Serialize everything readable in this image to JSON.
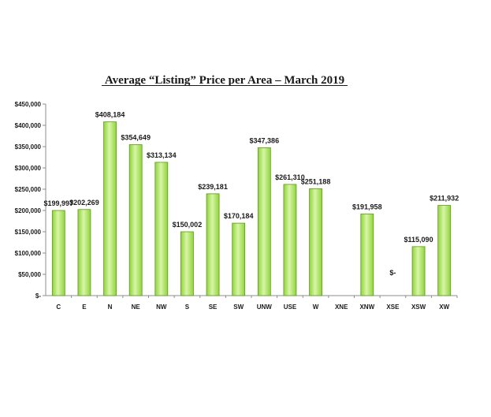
{
  "chart_data": {
    "type": "bar",
    "title": "Average “Listing” Price per Area – March 2019",
    "categories": [
      "C",
      "E",
      "N",
      "NE",
      "NW",
      "S",
      "SE",
      "SW",
      "UNW",
      "USE",
      "W",
      "XNE",
      "XNW",
      "XSE",
      "XSW",
      "XW"
    ],
    "values": [
      199997,
      202269,
      408184,
      354649,
      313134,
      150002,
      239181,
      170184,
      347386,
      261310,
      251188,
      null,
      191958,
      0,
      115090,
      211932
    ],
    "data_labels": [
      "$199,997",
      "$202,269",
      "$408,184",
      "$354,649",
      "$313,134",
      "$150,002",
      "$239,181",
      "$170,184",
      "$347,386",
      "$261,310",
      "$251,188",
      "",
      "$191,958",
      "$-",
      "$115,090",
      "$211,932"
    ],
    "ylim": [
      0,
      450000
    ],
    "yticks": [
      0,
      50000,
      100000,
      150000,
      200000,
      250000,
      300000,
      350000,
      400000,
      450000
    ],
    "ytick_labels": [
      "$-",
      "$50,000",
      "$100,000",
      "$150,000",
      "$200,000",
      "$250,000",
      "$300,000",
      "$350,000",
      "$400,000",
      "$450,000"
    ],
    "xlabel": "",
    "ylabel": "",
    "grid": false,
    "legend": "none",
    "bar_color": "#8fd43a",
    "bar_highlight": "#d8f5a8",
    "bar_edge": "#5e9a1e",
    "axis_color": "#8c8c8c"
  }
}
